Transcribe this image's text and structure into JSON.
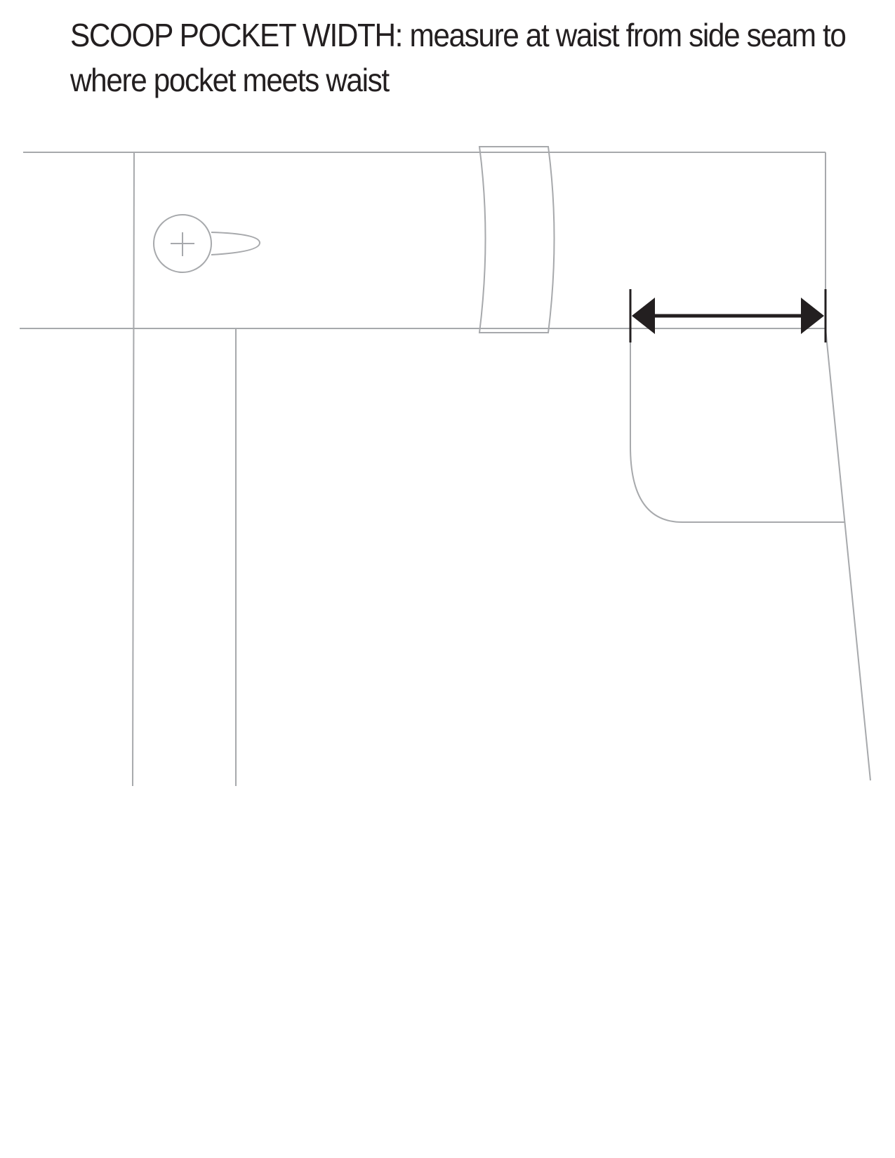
{
  "caption": {
    "line1": "SCOOP POCKET WIDTH:  measure at waist from side seam to",
    "line2": "where pocket meets waist"
  },
  "colors": {
    "outline": "#a7a9ac",
    "measure_arrow": "#231f20",
    "text": "#231f20"
  }
}
